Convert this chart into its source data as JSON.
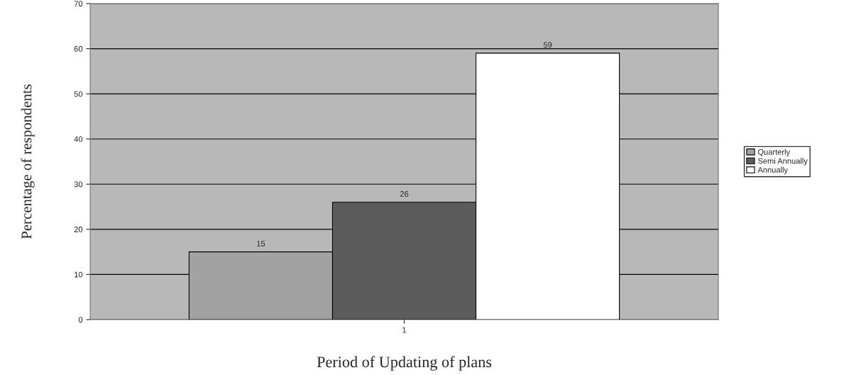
{
  "chart_data": {
    "type": "bar",
    "xlabel": "Period of Updating of plans",
    "ylabel": "Percentage of respondents",
    "categories": [
      "1"
    ],
    "series": [
      {
        "name": "Quarterly",
        "color": "#a3a3a3",
        "values": [
          15
        ]
      },
      {
        "name": "Semi Annually",
        "color": "#5c5c5c",
        "values": [
          26
        ]
      },
      {
        "name": "Annually",
        "color": "#ffffff",
        "values": [
          59
        ]
      }
    ],
    "ylim": [
      0,
      70
    ],
    "yticks": [
      0,
      10,
      20,
      30,
      40,
      50,
      60,
      70
    ],
    "grid": "y",
    "legend": "right",
    "data_labels": true
  }
}
